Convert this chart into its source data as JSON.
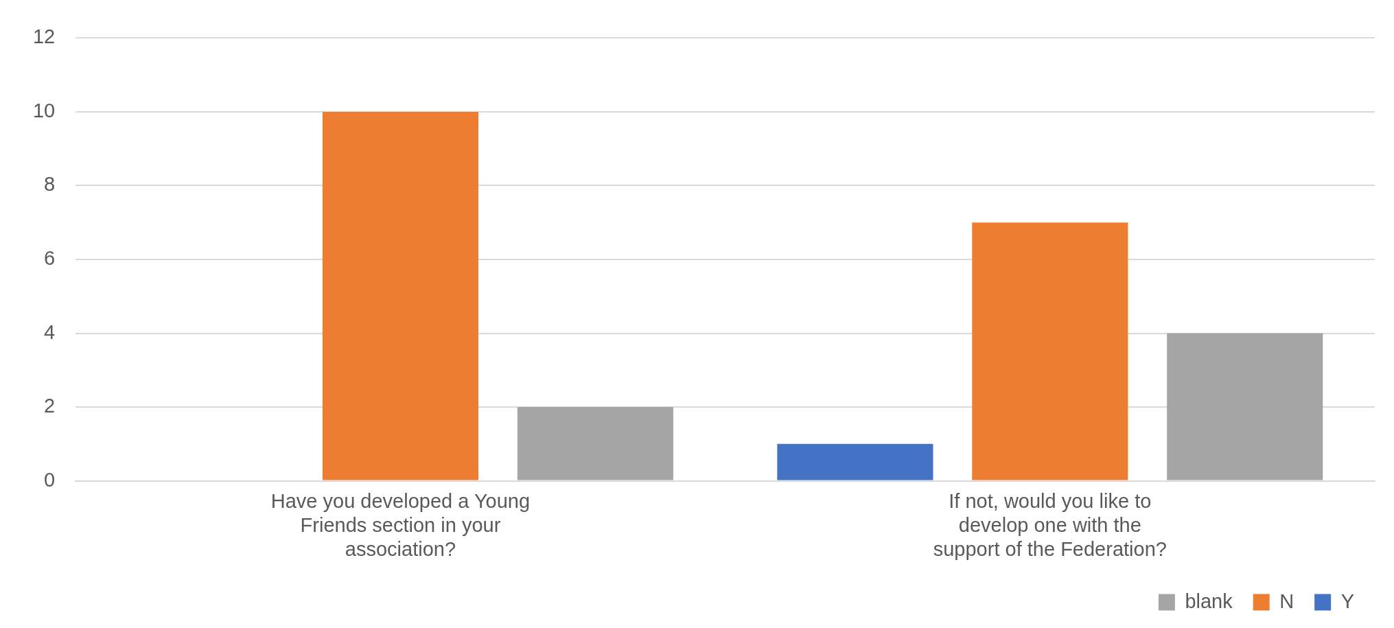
{
  "chart_data": {
    "type": "bar",
    "categories": [
      "Have you developed a Young Friends section in your association?",
      "If not, would you like to develop one with the support of the Federation?"
    ],
    "series": [
      {
        "name": "Y",
        "color": "#4472c4",
        "values": [
          0,
          1
        ]
      },
      {
        "name": "N",
        "color": "#ed7d31",
        "values": [
          10,
          7
        ]
      },
      {
        "name": "blank",
        "color": "#a5a5a5",
        "values": [
          2,
          4
        ]
      }
    ],
    "ylim": [
      0,
      12
    ],
    "yticks": [
      0,
      2,
      4,
      6,
      8,
      10,
      12
    ],
    "grid": "y",
    "legend": "bottom right"
  }
}
